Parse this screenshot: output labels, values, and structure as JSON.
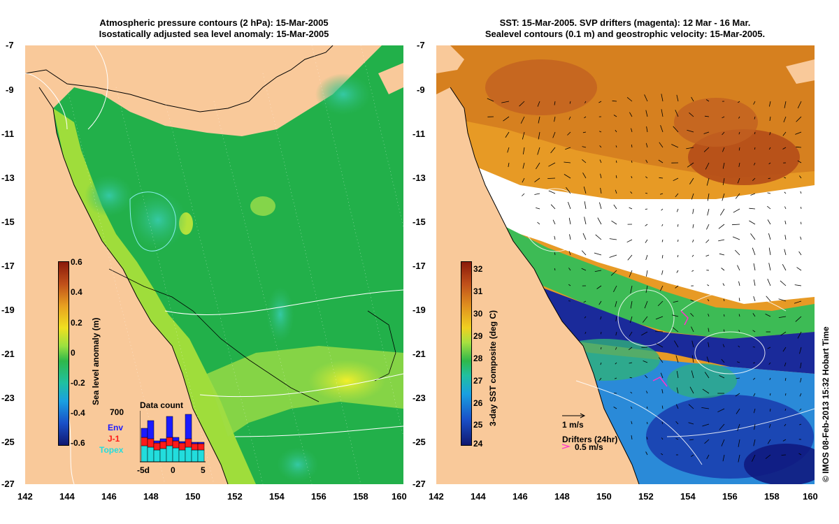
{
  "left_panel": {
    "title_line1": "Atmospheric pressure contours (2 hPa): 15-Mar-2005",
    "title_line2": "Isostatically adjusted sea level anomaly: 15-Mar-2005",
    "colorbar_label": "Sea level anomaly (m)",
    "colorbar_ticks": [
      "0.6",
      "0.4",
      "0.2",
      "0",
      "-0.2",
      "-0.4",
      "-0.6"
    ],
    "inset": {
      "title": "Data count",
      "ymax": "700",
      "legend": [
        "Env",
        "J-1",
        "Topex"
      ],
      "xticks": [
        "-5d",
        "0",
        "5"
      ]
    }
  },
  "right_panel": {
    "title_line1": "SST: 15-Mar-2005. SVP drifters (magenta): 12 Mar - 16 Mar.",
    "title_line2": "Sealevel contours (0.1 m) and geostrophic velocity: 15-Mar-2005.",
    "colorbar_label": "3-day SST composite (deg C)",
    "colorbar_ticks": [
      "32",
      "31",
      "30",
      "29",
      "28",
      "27",
      "26",
      "25",
      "24"
    ],
    "velocity_scale": "1 m/s",
    "drifters_label": "Drifters (24hr)",
    "drifters_scale": "0.5 m/s"
  },
  "axes": {
    "y_ticks": [
      "-7",
      "-9",
      "-11",
      "-13",
      "-15",
      "-17",
      "-19",
      "-21",
      "-23",
      "-25",
      "-27"
    ],
    "x_ticks": [
      "142",
      "144",
      "146",
      "148",
      "150",
      "152",
      "154",
      "156",
      "158",
      "160"
    ]
  },
  "copyright": "© IMOS 08-Feb-2013 15:32 Hobart Time",
  "colors": {
    "land": "#f9c99a",
    "sla_mid": "#22b04a",
    "sst_warm": "#c8631a",
    "sst_cool": "#1a2ea0",
    "drifters": "#ff33cc"
  }
}
